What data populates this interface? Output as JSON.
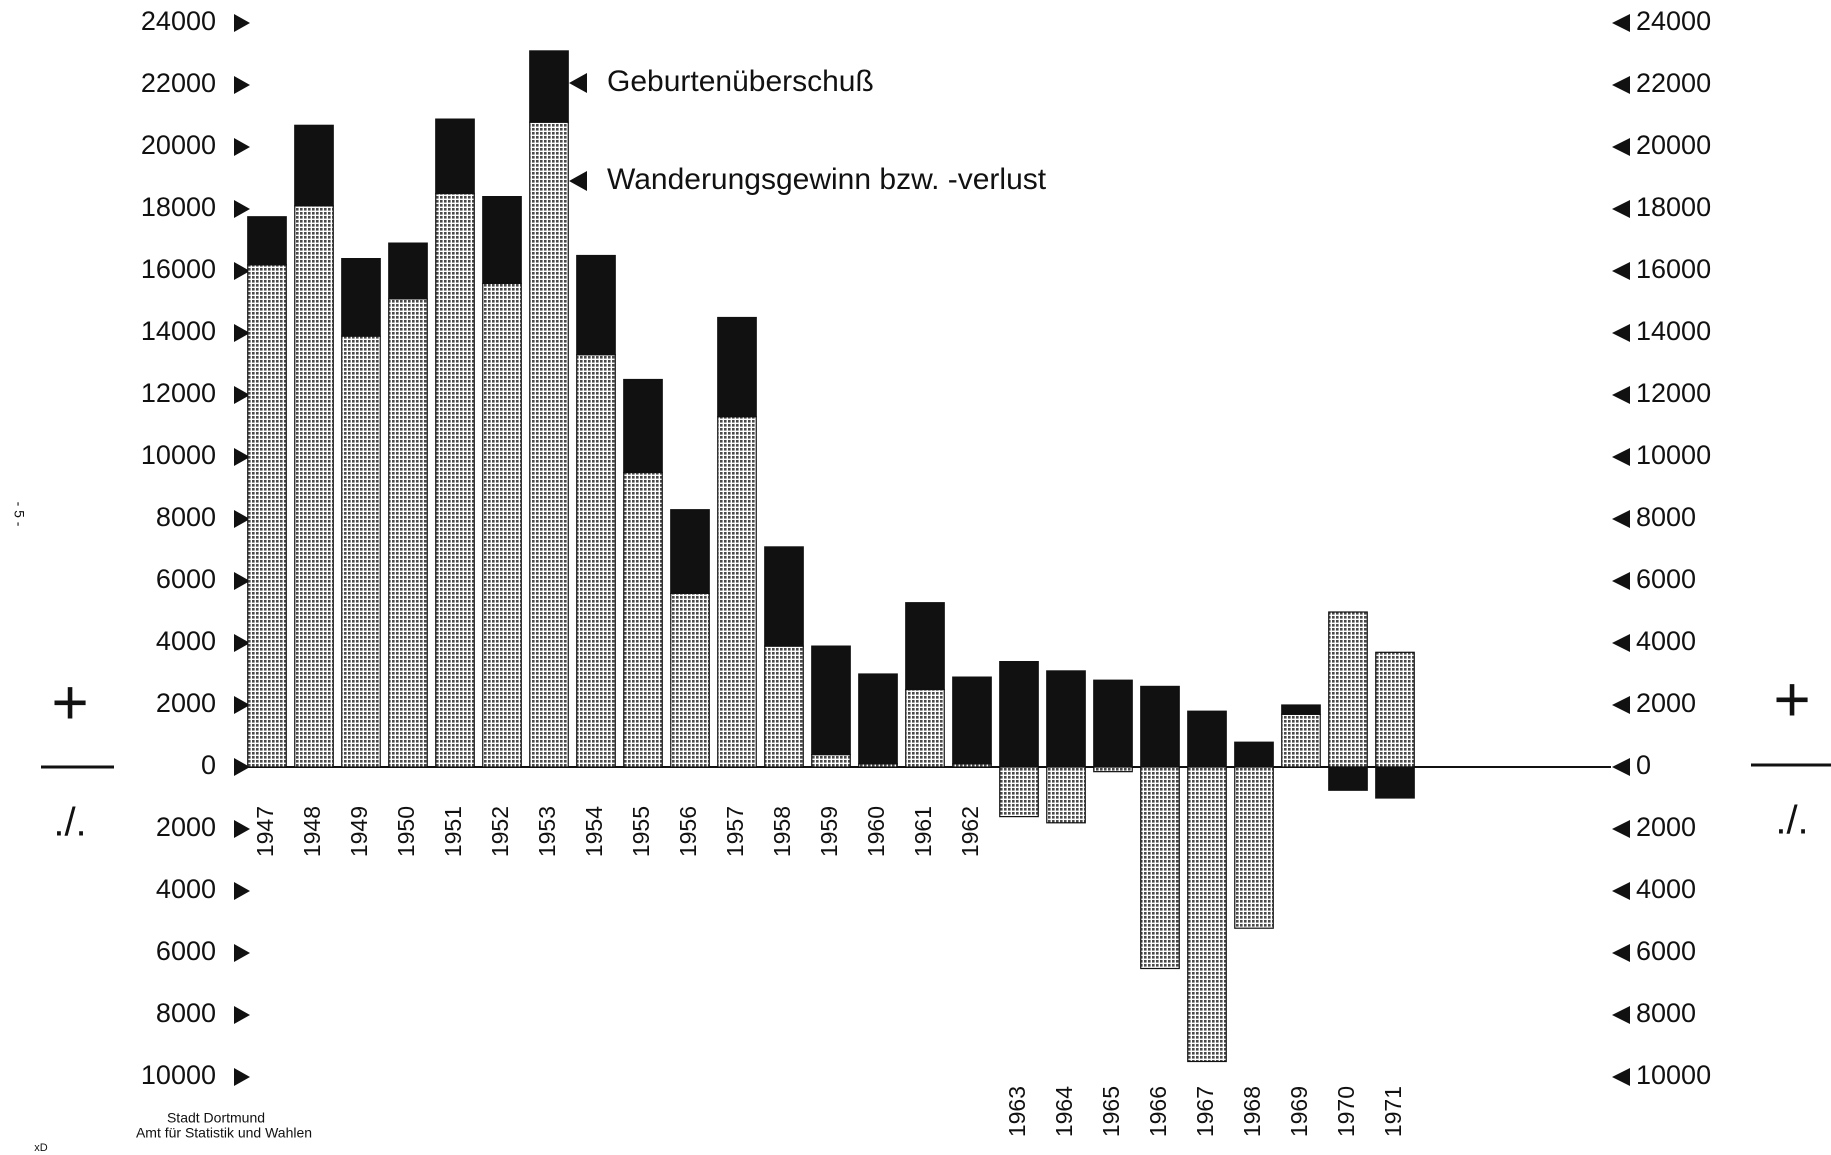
{
  "chart_data": {
    "type": "bar",
    "stacked": true,
    "categories": [
      "1947",
      "1948",
      "1949",
      "1950",
      "1951",
      "1952",
      "1953",
      "1954",
      "1955",
      "1956",
      "1957",
      "1958",
      "1959",
      "1960",
      "1961",
      "1962",
      "1963",
      "1964",
      "1965",
      "1966",
      "1967",
      "1968",
      "1969",
      "1970",
      "1971"
    ],
    "series": [
      {
        "name": "Wanderungsgewinn bzw. -verlust",
        "color": "#4a4a4a",
        "style": "dotted",
        "values": [
          16200,
          18100,
          13900,
          15100,
          18500,
          15600,
          20800,
          13300,
          9500,
          5600,
          11300,
          3900,
          400,
          100,
          2500,
          100,
          -1600,
          -1800,
          -150,
          -6500,
          -9500,
          -5200,
          1700,
          5000,
          3700
        ]
      },
      {
        "name": "Geburtenüberschuß",
        "color": "#111111",
        "style": "solid",
        "values": [
          1550,
          2600,
          2500,
          1800,
          2400,
          2800,
          2300,
          3200,
          3000,
          2700,
          3200,
          3200,
          3500,
          2900,
          2800,
          2800,
          3400,
          3100,
          2800,
          2600,
          1800,
          800,
          300,
          -750,
          -1000
        ]
      }
    ],
    "ylim": [
      -10000,
      24000
    ],
    "yticks": [
      {
        "value": -10000,
        "label": "10000"
      },
      {
        "value": -8000,
        "label": "8000"
      },
      {
        "value": -6000,
        "label": "6000"
      },
      {
        "value": -4000,
        "label": "4000"
      },
      {
        "value": -2000,
        "label": "2000"
      },
      0,
      2000,
      4000,
      6000,
      8000,
      10000,
      12000,
      14000,
      16000,
      18000,
      20000,
      22000,
      24000
    ],
    "y2lim": [
      -10000,
      24000
    ],
    "y2ticks": [
      {
        "value": -10000,
        "label": "10000"
      },
      {
        "value": -8000,
        "label": "8000"
      },
      {
        "value": -6000,
        "label": "6000"
      },
      {
        "value": -4000,
        "label": "4000"
      },
      {
        "value": -2000,
        "label": "2000"
      },
      0,
      2000,
      4000,
      6000,
      8000,
      10000,
      12000,
      14000,
      16000,
      18000,
      20000,
      22000,
      24000
    ],
    "sign_labels": {
      "plus": "+",
      "minus": "./."
    },
    "source": [
      "Stadt Dortmund",
      "Amt für Statistik und Wahlen"
    ],
    "page_number": "- 5 -",
    "corner_mark": "xD"
  }
}
